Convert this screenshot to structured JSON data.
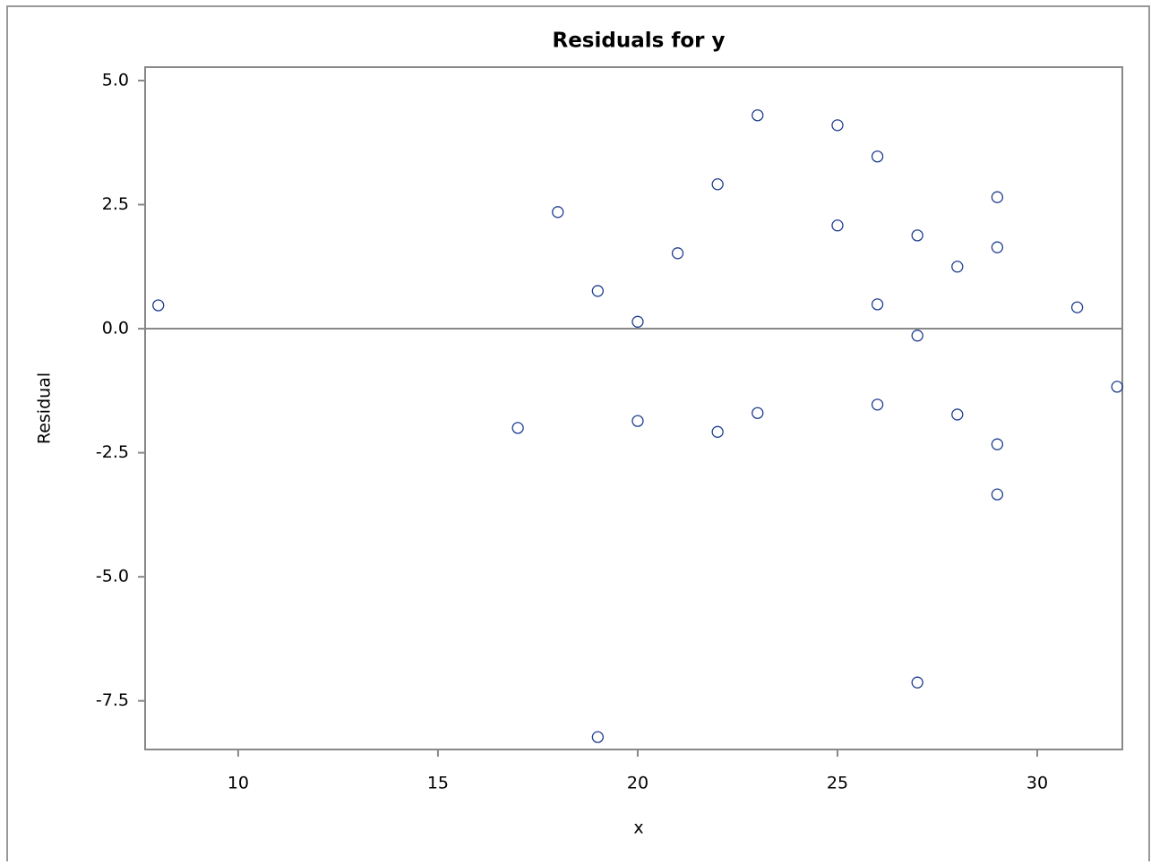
{
  "chart_data": {
    "type": "scatter",
    "title": "Residuals for y",
    "x_label": "x",
    "y_label": "Residual",
    "x": [
      8,
      17,
      18,
      19,
      19,
      20,
      20,
      21,
      22,
      22,
      23,
      23,
      25,
      25,
      26,
      26,
      26,
      27,
      27,
      27,
      28,
      28,
      29,
      29,
      29,
      29,
      31,
      32
    ],
    "y": [
      0.47,
      -2.0,
      2.35,
      0.76,
      -8.23,
      0.14,
      -1.86,
      1.52,
      2.91,
      -2.08,
      4.3,
      -1.7,
      4.1,
      2.08,
      3.47,
      0.49,
      -1.53,
      1.88,
      -0.14,
      -7.13,
      1.25,
      -1.73,
      2.65,
      1.64,
      -2.33,
      -3.34,
      0.43,
      -1.17
    ],
    "color": "#1f3d8f",
    "xlim": [
      7.67,
      32.13
    ],
    "xticks": [
      10,
      15,
      20,
      25,
      30
    ],
    "ylim": [
      -8.48,
      5.27
    ],
    "yticks": [
      {
        "value": -7.5,
        "label": "-7.5"
      },
      {
        "value": -5,
        "label": "-5.0"
      },
      {
        "value": -2.5,
        "label": "-2.5"
      },
      {
        "value": 0,
        "label": "0.0"
      },
      {
        "value": 2.5,
        "label": "2.5"
      },
      {
        "value": 5,
        "label": "5.0"
      }
    ],
    "reference_line": 0
  }
}
